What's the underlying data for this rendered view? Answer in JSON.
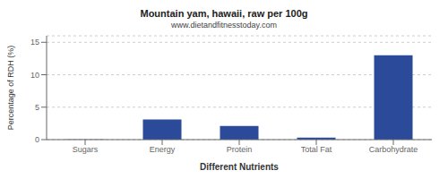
{
  "chart_data": {
    "type": "bar",
    "title": "Mountain yam, hawaii, raw per 100g",
    "subtitle": "www.dietandfitnesstoday.com",
    "xlabel": "Different Nutrients",
    "ylabel": "Percentage of RDH (%)",
    "categories": [
      "Sugars",
      "Energy",
      "Protein",
      "Total Fat",
      "Carbohydrate"
    ],
    "values": [
      0.05,
      3.1,
      2.1,
      0.3,
      13.0
    ],
    "color": "#2B4B9A",
    "ylim": [
      0,
      16
    ],
    "yticks": [
      0,
      5,
      10,
      15
    ],
    "grid": true
  }
}
